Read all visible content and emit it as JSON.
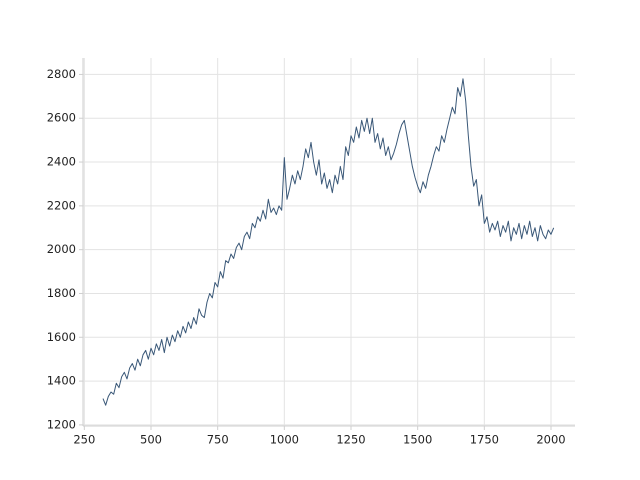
{
  "chart_data": {
    "type": "line",
    "x": [
      320,
      330,
      340,
      350,
      360,
      370,
      380,
      390,
      400,
      410,
      420,
      430,
      440,
      450,
      460,
      470,
      480,
      490,
      500,
      510,
      520,
      530,
      540,
      550,
      560,
      570,
      580,
      590,
      600,
      610,
      620,
      630,
      640,
      650,
      660,
      670,
      680,
      690,
      700,
      710,
      720,
      730,
      740,
      750,
      760,
      770,
      780,
      790,
      800,
      810,
      820,
      830,
      840,
      850,
      860,
      870,
      880,
      890,
      900,
      910,
      920,
      930,
      940,
      950,
      960,
      970,
      980,
      990,
      1000,
      1010,
      1020,
      1030,
      1040,
      1050,
      1060,
      1070,
      1080,
      1090,
      1100,
      1110,
      1120,
      1130,
      1140,
      1150,
      1160,
      1170,
      1180,
      1190,
      1200,
      1210,
      1220,
      1230,
      1240,
      1250,
      1260,
      1270,
      1280,
      1290,
      1300,
      1310,
      1320,
      1330,
      1340,
      1350,
      1360,
      1370,
      1380,
      1390,
      1400,
      1410,
      1420,
      1430,
      1440,
      1450,
      1460,
      1470,
      1480,
      1490,
      1500,
      1510,
      1520,
      1530,
      1540,
      1550,
      1560,
      1570,
      1580,
      1590,
      1600,
      1610,
      1620,
      1630,
      1640,
      1650,
      1660,
      1670,
      1680,
      1690,
      1700,
      1710,
      1720,
      1730,
      1740,
      1750,
      1760,
      1770,
      1780,
      1790,
      1800,
      1810,
      1820,
      1830,
      1840,
      1850,
      1860,
      1870,
      1880,
      1890,
      1900,
      1910,
      1920,
      1930,
      1940,
      1950,
      1960,
      1970,
      1980,
      1990,
      2000,
      2010
    ],
    "values": [
      1320,
      1290,
      1330,
      1350,
      1340,
      1390,
      1370,
      1420,
      1440,
      1410,
      1460,
      1480,
      1450,
      1500,
      1470,
      1520,
      1540,
      1500,
      1550,
      1520,
      1570,
      1540,
      1590,
      1530,
      1600,
      1560,
      1610,
      1580,
      1630,
      1600,
      1650,
      1620,
      1670,
      1640,
      1690,
      1660,
      1730,
      1700,
      1690,
      1760,
      1800,
      1780,
      1850,
      1830,
      1900,
      1870,
      1950,
      1940,
      1980,
      1960,
      2010,
      2030,
      2000,
      2060,
      2080,
      2050,
      2120,
      2100,
      2150,
      2130,
      2180,
      2140,
      2230,
      2170,
      2190,
      2160,
      2200,
      2180,
      2420,
      2230,
      2280,
      2340,
      2300,
      2360,
      2320,
      2380,
      2460,
      2420,
      2490,
      2400,
      2340,
      2410,
      2300,
      2350,
      2280,
      2320,
      2260,
      2340,
      2300,
      2380,
      2320,
      2470,
      2430,
      2520,
      2490,
      2560,
      2510,
      2590,
      2540,
      2600,
      2530,
      2600,
      2490,
      2530,
      2460,
      2510,
      2430,
      2470,
      2410,
      2440,
      2480,
      2530,
      2570,
      2590,
      2520,
      2450,
      2380,
      2330,
      2290,
      2260,
      2310,
      2280,
      2340,
      2380,
      2430,
      2470,
      2450,
      2520,
      2490,
      2550,
      2600,
      2650,
      2620,
      2740,
      2700,
      2780,
      2680,
      2520,
      2380,
      2290,
      2320,
      2200,
      2250,
      2120,
      2150,
      2080,
      2120,
      2090,
      2130,
      2060,
      2110,
      2080,
      2130,
      2040,
      2100,
      2070,
      2120,
      2050,
      2110,
      2070,
      2130,
      2060,
      2100,
      2040,
      2110,
      2070,
      2050,
      2090,
      2070,
      2100
    ],
    "color": "#3a5878",
    "xlim": [
      245,
      2090
    ],
    "ylim": [
      1195,
      2875
    ],
    "xticks": [
      250,
      500,
      750,
      1000,
      1250,
      1500,
      1750,
      2000
    ],
    "yticks": [
      1200,
      1400,
      1600,
      1800,
      2000,
      2200,
      2400,
      2600,
      2800
    ],
    "grid": true
  }
}
